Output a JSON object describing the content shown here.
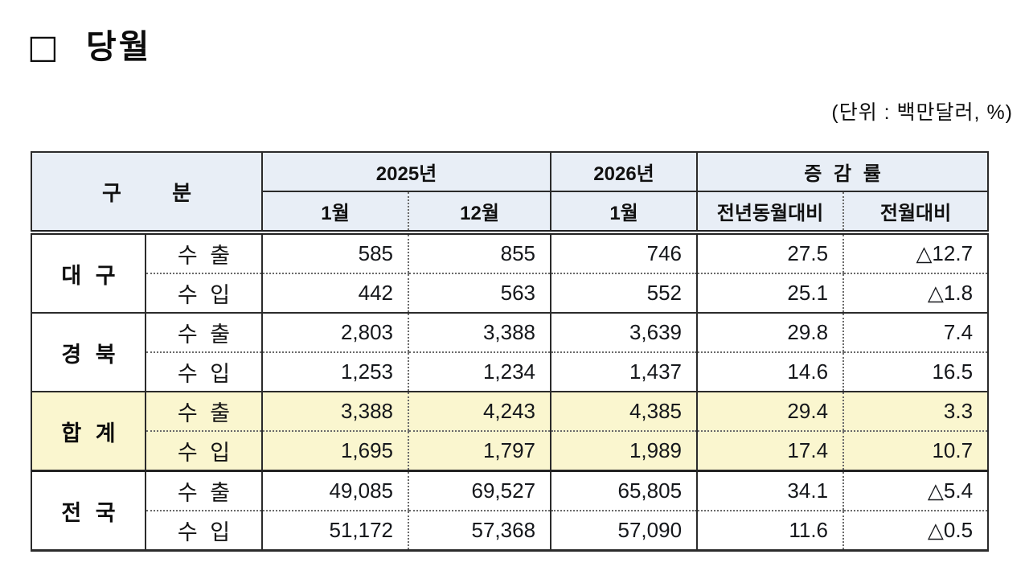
{
  "page": {
    "title": "□ 당월",
    "unit_note": "(단위 : 백만달러, %)"
  },
  "table": {
    "header": {
      "category": "구 분",
      "year_2025": "2025년",
      "year_2026": "2026년",
      "change_rate": "증 감 률",
      "sub_2025_jan": "1월",
      "sub_2025_dec": "12월",
      "sub_2026_jan": "1월",
      "sub_yoy": "전년동월대비",
      "sub_mom": "전월대비"
    },
    "groups": [
      {
        "region": "대 구",
        "export": {
          "label": "수 출",
          "values": [
            "585",
            "855",
            "746",
            "27.5",
            "△12.7"
          ]
        },
        "import": {
          "label": "수 입",
          "values": [
            "442",
            "563",
            "552",
            "25.1",
            "△1.8"
          ]
        }
      },
      {
        "region": "경 북",
        "export": {
          "label": "수 출",
          "values": [
            "2,803",
            "3,388",
            "3,639",
            "29.8",
            "7.4"
          ]
        },
        "import": {
          "label": "수 입",
          "values": [
            "1,253",
            "1,234",
            "1,437",
            "14.6",
            "16.5"
          ]
        }
      },
      {
        "region": "합 계",
        "export": {
          "label": "수 출",
          "values": [
            "3,388",
            "4,243",
            "4,385",
            "29.4",
            "3.3"
          ]
        },
        "import": {
          "label": "수 입",
          "values": [
            "1,695",
            "1,797",
            "1,989",
            "17.4",
            "10.7"
          ]
        }
      },
      {
        "region": "전 국",
        "export": {
          "label": "수 출",
          "values": [
            "49,085",
            "69,527",
            "65,805",
            "34.1",
            "△5.4"
          ]
        },
        "import": {
          "label": "수 입",
          "values": [
            "51,172",
            "57,368",
            "57,090",
            "11.6",
            "△0.5"
          ]
        }
      }
    ],
    "colors": {
      "header_bg": "#e8eef6",
      "highlight_bg": "#faf6cf",
      "border": "#2b2b2b"
    }
  }
}
